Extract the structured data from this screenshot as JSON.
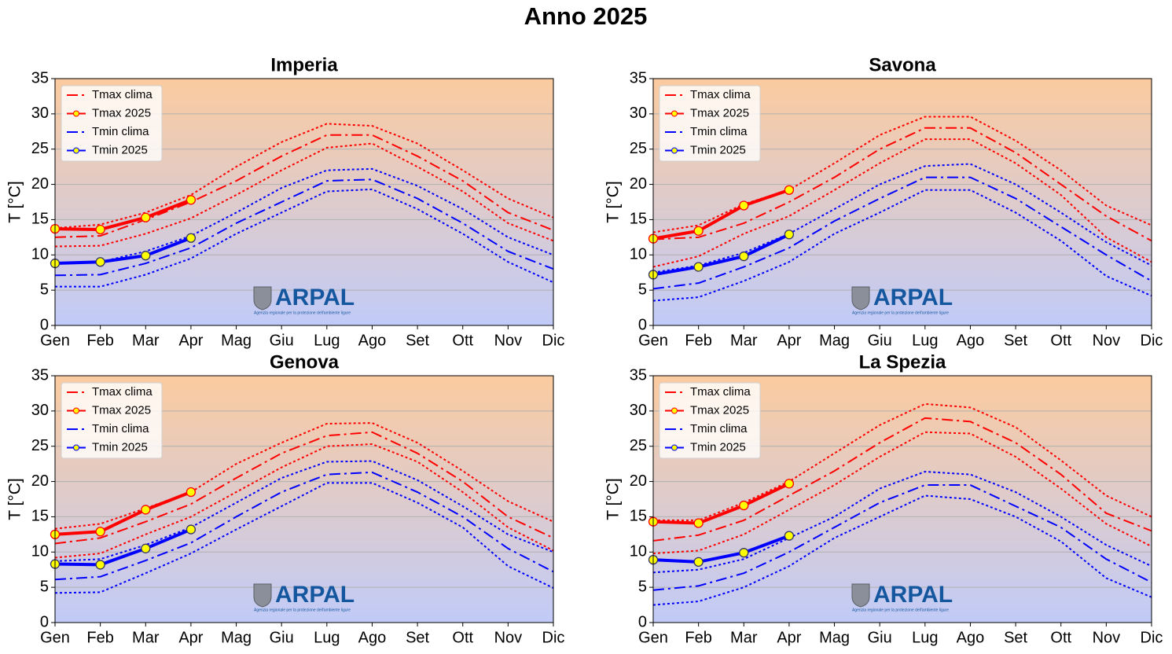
{
  "title": "Anno 2025",
  "logo": {
    "name": "ARPAL",
    "tagline": "Agenzia regionale per la protezione dell'ambiente ligure"
  },
  "chart_data": [
    {
      "type": "line",
      "title": "Imperia",
      "ylabel": "T [°C]",
      "categories": [
        "Gen",
        "Feb",
        "Mar",
        "Apr",
        "Mag",
        "Giu",
        "Lug",
        "Ago",
        "Set",
        "Ott",
        "Nov",
        "Dic"
      ],
      "ylim": [
        0,
        35
      ],
      "yticks": [
        0,
        5,
        10,
        15,
        20,
        25,
        30,
        35
      ],
      "grid": true,
      "legend": "upper left",
      "series": [
        {
          "name": "Tmax clima",
          "color": "#ff0000",
          "linestyle": "dashdot",
          "values": [
            12.5,
            12.7,
            15,
            17.5,
            20.5,
            24,
            27,
            27,
            24,
            20.5,
            16,
            13.5
          ],
          "upper": [
            13.8,
            14.3,
            16,
            18.5,
            22.5,
            26,
            28.6,
            28.3,
            25.8,
            22,
            18,
            15.3
          ],
          "lower": [
            11.2,
            11.3,
            13,
            15.2,
            18.5,
            22,
            25.2,
            25.8,
            22.5,
            19,
            14.5,
            12
          ]
        },
        {
          "name": "Tmax 2025",
          "color": "#ff0000",
          "markerfacecolor": "#ffff00",
          "linestyle": "solid",
          "values": [
            13.7,
            13.6,
            15.3,
            17.8,
            null,
            null,
            null,
            null,
            null,
            null,
            null,
            null
          ]
        },
        {
          "name": "Tmin clima",
          "color": "#0000ff",
          "linestyle": "dashdot",
          "values": [
            7.1,
            7.2,
            8.8,
            11,
            14.5,
            17.5,
            20.5,
            20.7,
            18,
            14.5,
            10.5,
            8
          ],
          "upper": [
            8.8,
            9,
            10.5,
            12.7,
            16,
            19.5,
            22,
            22.2,
            19.8,
            16.5,
            12.5,
            10
          ],
          "lower": [
            5.5,
            5.5,
            7.2,
            9.5,
            13,
            16,
            19,
            19.3,
            16.5,
            13,
            9,
            6.1
          ]
        },
        {
          "name": "Tmin 2025",
          "color": "#0000ff",
          "markerfacecolor": "#ffff00",
          "linestyle": "solid",
          "values": [
            8.8,
            9,
            9.9,
            12.4,
            null,
            null,
            null,
            null,
            null,
            null,
            null,
            null
          ]
        }
      ]
    },
    {
      "type": "line",
      "title": "Savona",
      "ylabel": "T [°C]",
      "categories": [
        "Gen",
        "Feb",
        "Mar",
        "Apr",
        "Mag",
        "Giu",
        "Lug",
        "Ago",
        "Set",
        "Ott",
        "Nov",
        "Dic"
      ],
      "ylim": [
        0,
        35
      ],
      "yticks": [
        0,
        5,
        10,
        15,
        20,
        25,
        30,
        35
      ],
      "grid": true,
      "legend": "upper left",
      "series": [
        {
          "name": "Tmax clima",
          "color": "#ff0000",
          "linestyle": "dashdot",
          "values": [
            12.2,
            12.5,
            14.5,
            17.5,
            21,
            25,
            28,
            28,
            24.5,
            20,
            15.5,
            12
          ],
          "upper": [
            13.2,
            14.2,
            17.2,
            19.2,
            23,
            27,
            29.6,
            29.6,
            26.2,
            22,
            17,
            14.2
          ],
          "lower": [
            8.3,
            9.8,
            13,
            15.5,
            19.2,
            23,
            26.4,
            26.4,
            23,
            18.5,
            12.5,
            9
          ]
        },
        {
          "name": "Tmax 2025",
          "color": "#ff0000",
          "markerfacecolor": "#ffff00",
          "linestyle": "solid",
          "values": [
            12.3,
            13.4,
            17,
            19.2,
            null,
            null,
            null,
            null,
            null,
            null,
            null,
            null
          ]
        },
        {
          "name": "Tmin clima",
          "color": "#0000ff",
          "linestyle": "dashdot",
          "values": [
            5.2,
            6,
            8.3,
            11,
            14.8,
            18,
            21,
            21,
            18,
            14,
            10,
            6.3
          ],
          "upper": [
            7.5,
            8.5,
            10.3,
            13,
            16.5,
            20,
            22.6,
            22.9,
            20,
            16,
            11.8,
            8.5
          ],
          "lower": [
            3.5,
            4,
            6.3,
            9,
            13,
            16,
            19.2,
            19.2,
            16,
            12,
            7,
            4.2
          ]
        },
        {
          "name": "Tmin 2025",
          "color": "#0000ff",
          "markerfacecolor": "#ffff00",
          "linestyle": "solid",
          "values": [
            7.2,
            8.3,
            9.8,
            12.9,
            null,
            null,
            null,
            null,
            null,
            null,
            null,
            null
          ]
        }
      ]
    },
    {
      "type": "line",
      "title": "Genova",
      "ylabel": "T [°C]",
      "categories": [
        "Gen",
        "Feb",
        "Mar",
        "Apr",
        "Mag",
        "Giu",
        "Lug",
        "Ago",
        "Set",
        "Ott",
        "Nov",
        "Dic"
      ],
      "ylim": [
        0,
        35
      ],
      "yticks": [
        0,
        5,
        10,
        15,
        20,
        25,
        30,
        35
      ],
      "grid": true,
      "legend": "upper left",
      "series": [
        {
          "name": "Tmax clima",
          "color": "#ff0000",
          "linestyle": "dashdot",
          "values": [
            11.2,
            12,
            14.3,
            16.8,
            20.5,
            24,
            26.5,
            27,
            24,
            20,
            15,
            12
          ],
          "upper": [
            13.3,
            14,
            16.2,
            18.5,
            22.5,
            25.5,
            28.2,
            28.3,
            25.5,
            21.5,
            17.2,
            14.3
          ],
          "lower": [
            9.2,
            9.8,
            12.5,
            15,
            18.5,
            22,
            25,
            25.3,
            22.8,
            18.5,
            13.5,
            10.2
          ]
        },
        {
          "name": "Tmax 2025",
          "color": "#ff0000",
          "markerfacecolor": "#ffff00",
          "linestyle": "solid",
          "values": [
            12.5,
            12.9,
            16,
            18.5,
            null,
            null,
            null,
            null,
            null,
            null,
            null,
            null
          ]
        },
        {
          "name": "Tmin clima",
          "color": "#0000ff",
          "linestyle": "dashdot",
          "values": [
            6.1,
            6.5,
            8.8,
            11.3,
            15,
            18.5,
            21,
            21.3,
            18.5,
            15,
            10.5,
            7.2
          ],
          "upper": [
            8.7,
            9,
            11,
            13.5,
            17,
            20.5,
            22.8,
            22.9,
            20.2,
            16.5,
            12.5,
            10
          ],
          "lower": [
            4.2,
            4.3,
            7,
            9.8,
            13.2,
            16.5,
            19.8,
            19.8,
            17,
            13.5,
            8,
            4.9
          ]
        },
        {
          "name": "Tmin 2025",
          "color": "#0000ff",
          "markerfacecolor": "#ffff00",
          "linestyle": "solid",
          "values": [
            8.3,
            8.2,
            10.5,
            13.2,
            null,
            null,
            null,
            null,
            null,
            null,
            null,
            null
          ]
        }
      ]
    },
    {
      "type": "line",
      "title": "La Spezia",
      "ylabel": "T [°C]",
      "categories": [
        "Gen",
        "Feb",
        "Mar",
        "Apr",
        "Mag",
        "Giu",
        "Lug",
        "Ago",
        "Set",
        "Ott",
        "Nov",
        "Dic"
      ],
      "ylim": [
        0,
        35
      ],
      "yticks": [
        0,
        5,
        10,
        15,
        20,
        25,
        30,
        35
      ],
      "grid": true,
      "legend": "upper left",
      "series": [
        {
          "name": "Tmax clima",
          "color": "#ff0000",
          "linestyle": "dashdot",
          "values": [
            11.6,
            12.4,
            14.5,
            18,
            21.5,
            25.5,
            29,
            28.5,
            25.5,
            21,
            15.5,
            13
          ],
          "upper": [
            14.5,
            14.5,
            17,
            20,
            24,
            28,
            31,
            30.5,
            27.7,
            23,
            18,
            15
          ],
          "lower": [
            9.8,
            10.2,
            12.5,
            16,
            19.5,
            23.5,
            27,
            26.8,
            23.5,
            19,
            14,
            10.8
          ]
        },
        {
          "name": "Tmax 2025",
          "color": "#ff0000",
          "markerfacecolor": "#ffff00",
          "linestyle": "solid",
          "values": [
            14.3,
            14.1,
            16.6,
            19.7,
            null,
            null,
            null,
            null,
            null,
            null,
            null,
            null
          ]
        },
        {
          "name": "Tmin clima",
          "color": "#0000ff",
          "linestyle": "dashdot",
          "values": [
            4.6,
            5.2,
            7,
            10,
            13.5,
            17,
            19.5,
            19.5,
            16.5,
            13.5,
            9,
            5.7
          ],
          "upper": [
            7.1,
            7.5,
            9,
            12,
            15,
            19,
            21.4,
            21,
            18.5,
            15,
            11,
            8
          ],
          "lower": [
            2.5,
            3,
            5,
            8,
            12,
            15,
            18,
            17.5,
            15,
            11.5,
            6.3,
            3.6
          ]
        },
        {
          "name": "Tmin 2025",
          "color": "#0000ff",
          "markerfacecolor": "#ffff00",
          "linestyle": "solid",
          "values": [
            8.9,
            8.6,
            9.9,
            12.3,
            null,
            null,
            null,
            null,
            null,
            null,
            null,
            null
          ]
        }
      ]
    }
  ]
}
